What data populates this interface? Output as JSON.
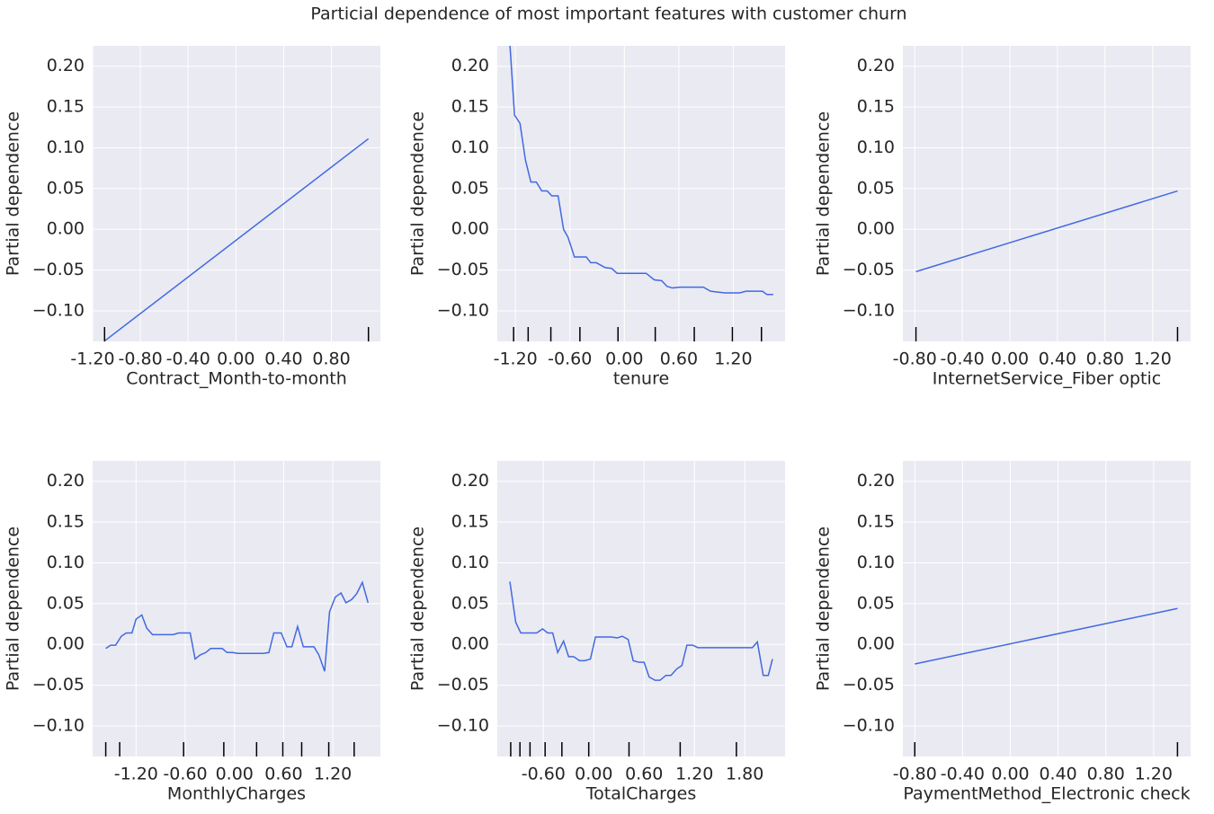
{
  "title": "Particial dependence of most important features with customer churn",
  "chart_data": [
    {
      "type": "line",
      "xlabel": "Contract_Month-to-month",
      "ylabel": "Partial dependence",
      "color": "#4169e1",
      "grid": true,
      "x": [
        -1.1,
        1.11
      ],
      "values": [
        -0.137,
        0.111
      ],
      "deciles": [
        -1.1,
        1.11
      ],
      "xlim": [
        -1.2,
        1.21
      ],
      "ylim": [
        -0.1375,
        0.225
      ],
      "xticks": [
        {
          "value": -1.2,
          "label": "-1.20"
        },
        {
          "value": -0.8,
          "label": "-0.80"
        },
        {
          "value": -0.4,
          "label": "-0.40"
        },
        {
          "value": 0,
          "label": "0.00"
        },
        {
          "value": 0.4,
          "label": "0.40"
        },
        {
          "value": 0.8,
          "label": "0.80"
        }
      ],
      "yticks": [
        {
          "value": -0.1,
          "label": "−0.10"
        },
        {
          "value": -0.05,
          "label": "−0.05"
        },
        {
          "value": 0,
          "label": "0.00"
        },
        {
          "value": 0.05,
          "label": "0.05"
        },
        {
          "value": 0.1,
          "label": "0.10"
        },
        {
          "value": 0.15,
          "label": "0.15"
        },
        {
          "value": 0.2,
          "label": "0.20"
        }
      ]
    },
    {
      "type": "line",
      "xlabel": "tenure",
      "ylabel": "Partial dependence",
      "color": "#4169e1",
      "grid": true,
      "x": [
        -1.26,
        -1.21,
        -1.15,
        -1.09,
        -1.03,
        -0.97,
        -0.91,
        -0.85,
        -0.8,
        -0.73,
        -0.67,
        -0.62,
        -0.55,
        -0.42,
        -0.37,
        -0.31,
        -0.21,
        -0.14,
        -0.08,
        0.24,
        0.33,
        0.41,
        0.47,
        0.53,
        0.61,
        0.87,
        0.95,
        1.03,
        1.11,
        1.27,
        1.34,
        1.52,
        1.57,
        1.64
      ],
      "values": [
        0.225,
        0.14,
        0.13,
        0.085,
        0.058,
        0.058,
        0.047,
        0.047,
        0.041,
        0.041,
        0.0,
        -0.01,
        -0.034,
        -0.034,
        -0.041,
        -0.041,
        -0.047,
        -0.048,
        -0.054,
        -0.054,
        -0.062,
        -0.063,
        -0.07,
        -0.072,
        -0.071,
        -0.071,
        -0.076,
        -0.077,
        -0.078,
        -0.078,
        -0.076,
        -0.076,
        -0.08,
        -0.08
      ],
      "deciles": [
        -1.22,
        -1.06,
        -0.81,
        -0.49,
        -0.07,
        0.34,
        0.77,
        1.19,
        1.51
      ],
      "xlim": [
        -1.4,
        1.77
      ],
      "ylim": [
        -0.1375,
        0.225
      ],
      "xticks": [
        {
          "value": -1.2,
          "label": "-1.20"
        },
        {
          "value": -0.6,
          "label": "-0.60"
        },
        {
          "value": 0,
          "label": "0.00"
        },
        {
          "value": 0.6,
          "label": "0.60"
        },
        {
          "value": 1.2,
          "label": "1.20"
        }
      ],
      "yticks": [
        {
          "value": -0.1,
          "label": "−0.10"
        },
        {
          "value": -0.05,
          "label": "−0.05"
        },
        {
          "value": 0,
          "label": "0.00"
        },
        {
          "value": 0.05,
          "label": "0.05"
        },
        {
          "value": 0.1,
          "label": "0.10"
        },
        {
          "value": 0.15,
          "label": "0.15"
        },
        {
          "value": 0.2,
          "label": "0.20"
        }
      ]
    },
    {
      "type": "line",
      "xlabel": "InternetService_Fiber optic",
      "ylabel": "Partial dependence",
      "color": "#4169e1",
      "grid": true,
      "x": [
        -0.79,
        1.41
      ],
      "values": [
        -0.052,
        0.047
      ],
      "deciles": [
        -0.79,
        1.41
      ],
      "xlim": [
        -0.9,
        1.52
      ],
      "ylim": [
        -0.1375,
        0.225
      ],
      "xticks": [
        {
          "value": -0.8,
          "label": "-0.80"
        },
        {
          "value": -0.4,
          "label": "-0.40"
        },
        {
          "value": 0,
          "label": "0.00"
        },
        {
          "value": 0.4,
          "label": "0.40"
        },
        {
          "value": 0.8,
          "label": "0.80"
        },
        {
          "value": 1.2,
          "label": "1.20"
        }
      ],
      "yticks": [
        {
          "value": -0.1,
          "label": "−0.10"
        },
        {
          "value": -0.05,
          "label": "−0.05"
        },
        {
          "value": 0,
          "label": "0.00"
        },
        {
          "value": 0.05,
          "label": "0.05"
        },
        {
          "value": 0.1,
          "label": "0.10"
        },
        {
          "value": 0.15,
          "label": "0.15"
        },
        {
          "value": 0.2,
          "label": "0.20"
        }
      ]
    },
    {
      "type": "line",
      "xlabel": "MonthlyCharges",
      "ylabel": "Partial dependence",
      "color": "#4169e1",
      "grid": true,
      "x": [
        -1.57,
        -1.51,
        -1.45,
        -1.38,
        -1.32,
        -1.25,
        -1.2,
        -1.13,
        -1.07,
        -1.0,
        -0.75,
        -0.68,
        -0.54,
        -0.48,
        -0.42,
        -0.35,
        -0.29,
        -0.15,
        -0.09,
        -0.02,
        0.04,
        0.35,
        0.42,
        0.48,
        0.57,
        0.64,
        0.7,
        0.77,
        0.84,
        0.97,
        1.03,
        1.1,
        1.16,
        1.23,
        1.3,
        1.36,
        1.43,
        1.49,
        1.56,
        1.63
      ],
      "values": [
        -0.005,
        -0.001,
        -0.001,
        0.01,
        0.014,
        0.014,
        0.031,
        0.036,
        0.02,
        0.012,
        0.012,
        0.014,
        0.014,
        -0.018,
        -0.013,
        -0.01,
        -0.005,
        -0.005,
        -0.01,
        -0.01,
        -0.011,
        -0.011,
        -0.01,
        0.014,
        0.014,
        -0.003,
        -0.003,
        0.022,
        -0.003,
        -0.003,
        -0.013,
        -0.033,
        0.04,
        0.058,
        0.063,
        0.051,
        0.055,
        0.062,
        0.076,
        0.051
      ],
      "deciles": [
        -1.57,
        -1.4,
        -0.62,
        -0.13,
        0.27,
        0.59,
        0.82,
        1.15,
        1.46
      ],
      "xlim": [
        -1.73,
        1.78
      ],
      "ylim": [
        -0.1375,
        0.225
      ],
      "xticks": [
        {
          "value": -1.2,
          "label": "-1.20"
        },
        {
          "value": -0.6,
          "label": "-0.60"
        },
        {
          "value": 0,
          "label": "0.00"
        },
        {
          "value": 0.6,
          "label": "0.60"
        },
        {
          "value": 1.2,
          "label": "1.20"
        }
      ],
      "yticks": [
        {
          "value": -0.1,
          "label": "−0.10"
        },
        {
          "value": -0.05,
          "label": "−0.05"
        },
        {
          "value": 0,
          "label": "0.00"
        },
        {
          "value": 0.05,
          "label": "0.05"
        },
        {
          "value": 0.1,
          "label": "0.10"
        },
        {
          "value": 0.15,
          "label": "0.15"
        },
        {
          "value": 0.2,
          "label": "0.20"
        }
      ]
    },
    {
      "type": "line",
      "xlabel": "TotalCharges",
      "ylabel": "Partial dependence",
      "color": "#4169e1",
      "grid": true,
      "x": [
        -1.0,
        -0.93,
        -0.87,
        -0.68,
        -0.61,
        -0.55,
        -0.49,
        -0.43,
        -0.36,
        -0.3,
        -0.24,
        -0.17,
        -0.11,
        -0.04,
        0.02,
        0.21,
        0.28,
        0.34,
        0.41,
        0.47,
        0.54,
        0.6,
        0.66,
        0.73,
        0.79,
        0.86,
        0.92,
        0.99,
        1.05,
        1.11,
        1.18,
        1.24,
        1.89,
        1.95,
        2.02,
        2.08,
        2.13
      ],
      "values": [
        0.077,
        0.027,
        0.014,
        0.014,
        0.019,
        0.014,
        0.014,
        -0.01,
        0.004,
        -0.015,
        -0.015,
        -0.02,
        -0.02,
        -0.018,
        0.009,
        0.009,
        0.008,
        0.01,
        0.006,
        -0.02,
        -0.022,
        -0.022,
        -0.04,
        -0.044,
        -0.044,
        -0.038,
        -0.038,
        -0.03,
        -0.026,
        -0.001,
        -0.001,
        -0.004,
        -0.004,
        0.003,
        -0.038,
        -0.038,
        -0.018
      ],
      "deciles": [
        -0.99,
        -0.88,
        -0.76,
        -0.58,
        -0.38,
        -0.06,
        0.42,
        1.03,
        1.7
      ],
      "xlim": [
        -1.15,
        2.28
      ],
      "ylim": [
        -0.1375,
        0.225
      ],
      "xticks": [
        {
          "value": -0.6,
          "label": "-0.60"
        },
        {
          "value": 0,
          "label": "0.00"
        },
        {
          "value": 0.6,
          "label": "0.60"
        },
        {
          "value": 1.2,
          "label": "1.20"
        },
        {
          "value": 1.8,
          "label": "1.80"
        }
      ],
      "yticks": [
        {
          "value": -0.1,
          "label": "−0.10"
        },
        {
          "value": -0.05,
          "label": "−0.05"
        },
        {
          "value": 0,
          "label": "0.00"
        },
        {
          "value": 0.05,
          "label": "0.05"
        },
        {
          "value": 0.1,
          "label": "0.10"
        },
        {
          "value": 0.15,
          "label": "0.15"
        },
        {
          "value": 0.2,
          "label": "0.20"
        }
      ]
    },
    {
      "type": "line",
      "xlabel": "PaymentMethod_Electronic check",
      "ylabel": "Partial dependence",
      "color": "#4169e1",
      "grid": true,
      "x": [
        -0.8,
        1.4
      ],
      "values": [
        -0.024,
        0.044
      ],
      "deciles": [
        -0.8,
        1.4
      ],
      "xlim": [
        -0.9,
        1.51
      ],
      "ylim": [
        -0.1375,
        0.225
      ],
      "xticks": [
        {
          "value": -0.8,
          "label": "-0.80"
        },
        {
          "value": -0.4,
          "label": "-0.40"
        },
        {
          "value": 0,
          "label": "0.00"
        },
        {
          "value": 0.4,
          "label": "0.40"
        },
        {
          "value": 0.8,
          "label": "0.80"
        },
        {
          "value": 1.2,
          "label": "1.20"
        }
      ],
      "yticks": [
        {
          "value": -0.1,
          "label": "−0.10"
        },
        {
          "value": -0.05,
          "label": "−0.05"
        },
        {
          "value": 0,
          "label": "0.00"
        },
        {
          "value": 0.05,
          "label": "0.05"
        },
        {
          "value": 0.1,
          "label": "0.10"
        },
        {
          "value": 0.15,
          "label": "0.15"
        },
        {
          "value": 0.2,
          "label": "0.20"
        }
      ]
    }
  ]
}
